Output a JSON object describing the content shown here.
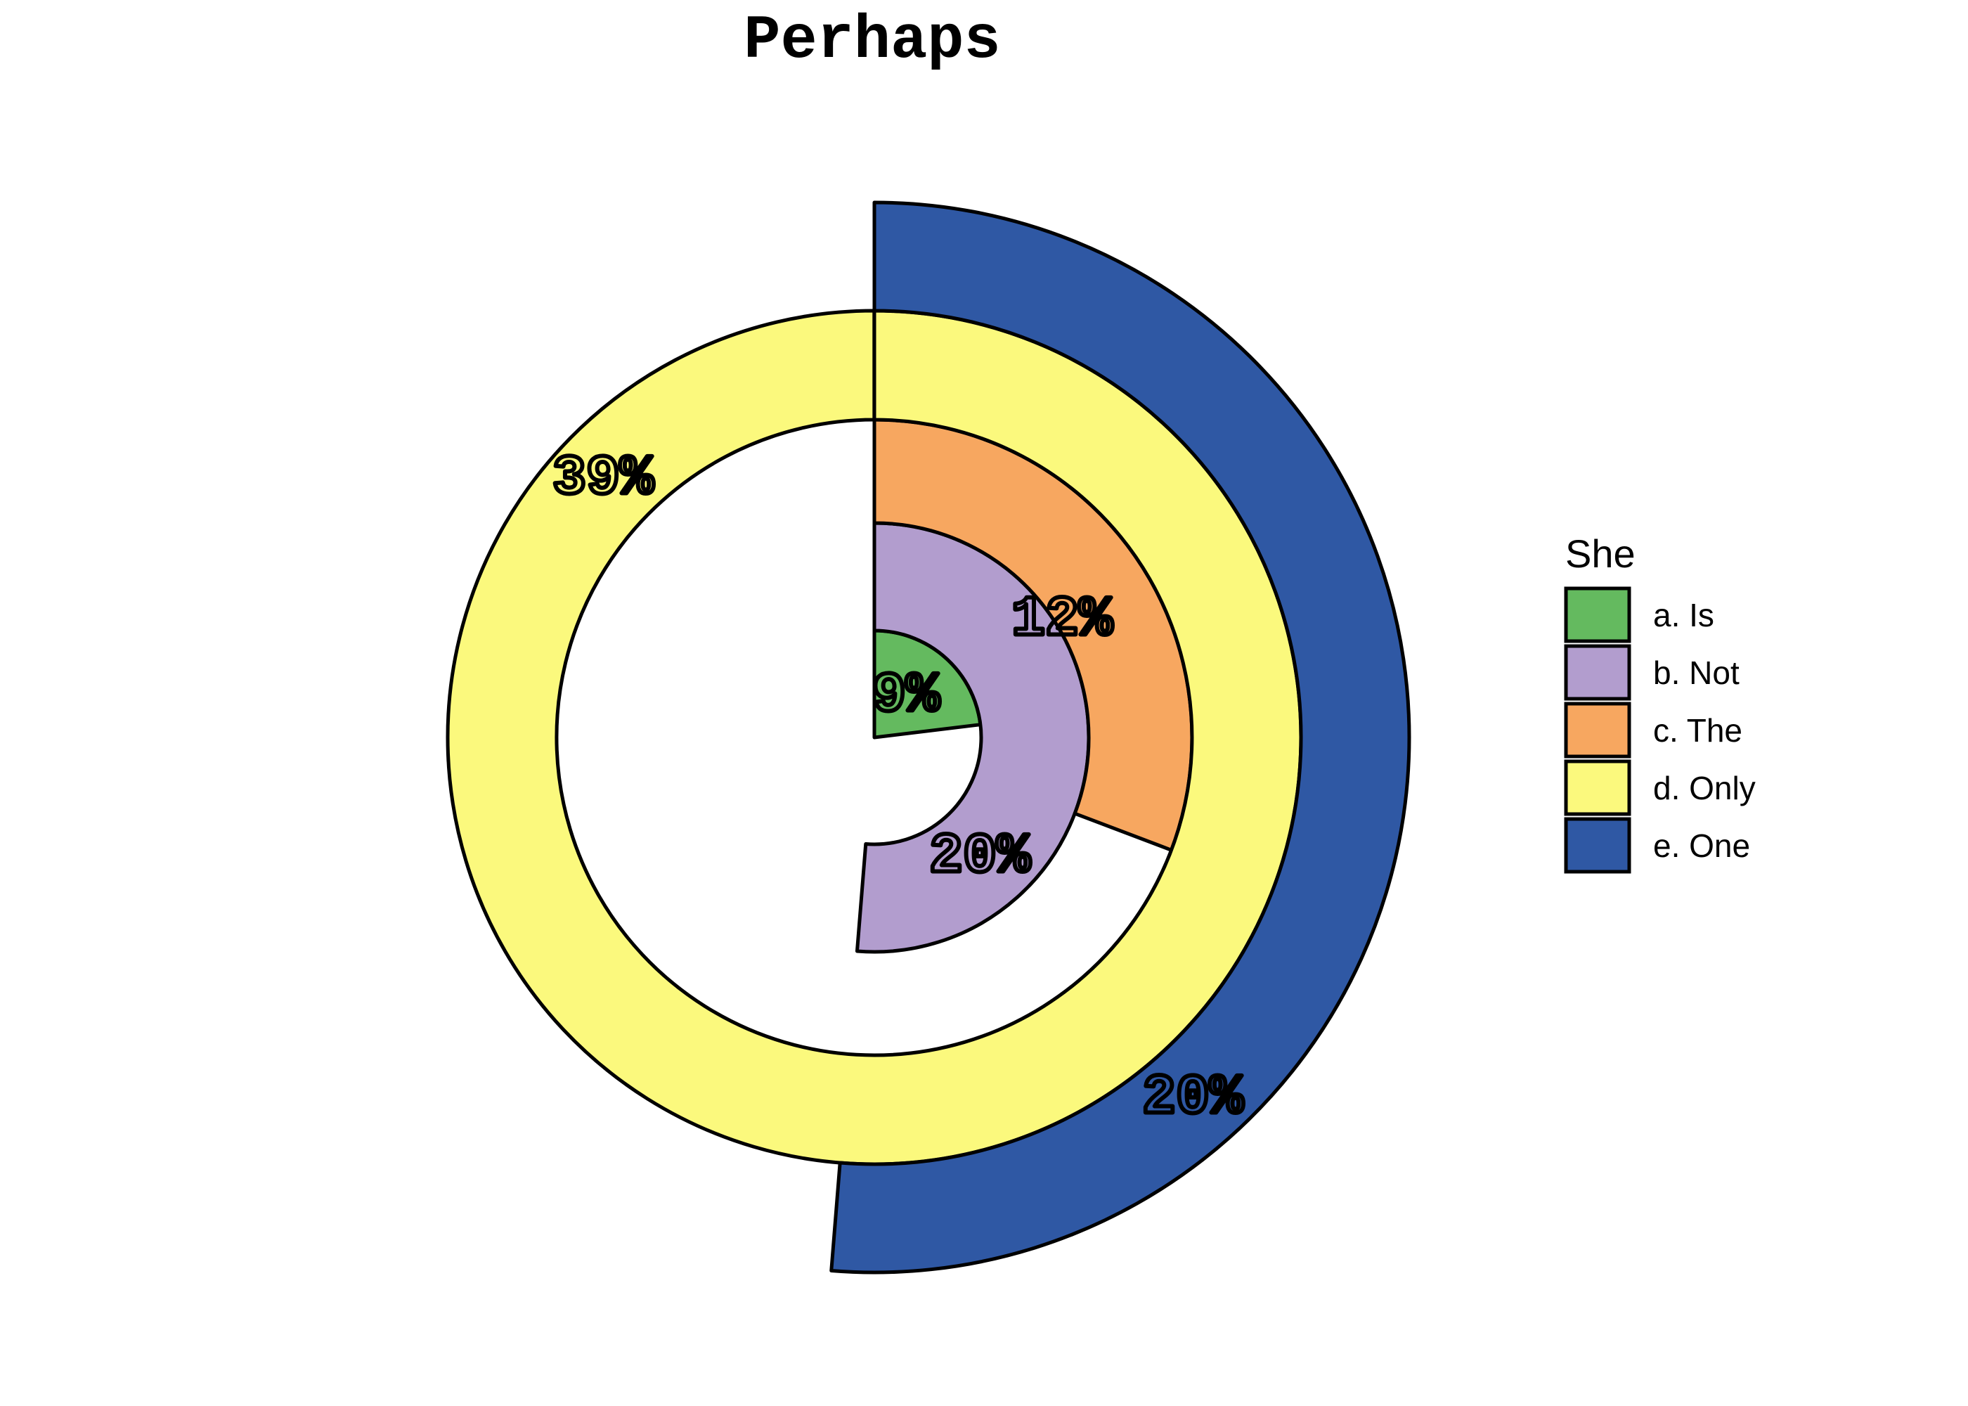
{
  "page": {
    "background_color": "#FFFFFF"
  },
  "chart_data": {
    "type": "pie",
    "subtype": "polar-radial-bar (each slice starts at 12 o'clock, sweeps clockwise by value, rings ordered a innermost to e outermost)",
    "title": "Perhaps",
    "legend": {
      "title": "She",
      "position": "right"
    },
    "start_angle": "12-oclock",
    "direction": "clockwise",
    "angle_full_turn_value": 39,
    "outline_color": "#000000",
    "series": [
      {
        "key": "a",
        "label": "a. Is",
        "value": 9,
        "pct": "9%",
        "color": "#64BA5F"
      },
      {
        "key": "b",
        "label": "b. Not",
        "value": 20,
        "pct": "20%",
        "color": "#B29DCE"
      },
      {
        "key": "c",
        "label": "c. The",
        "value": 12,
        "pct": "12%",
        "color": "#F7A760"
      },
      {
        "key": "d",
        "label": "d. Only",
        "value": 39,
        "pct": "39%",
        "color": "#FBF97D"
      },
      {
        "key": "e",
        "label": "e. One",
        "value": 20,
        "pct": "20%",
        "color": "#2F58A4"
      }
    ]
  }
}
